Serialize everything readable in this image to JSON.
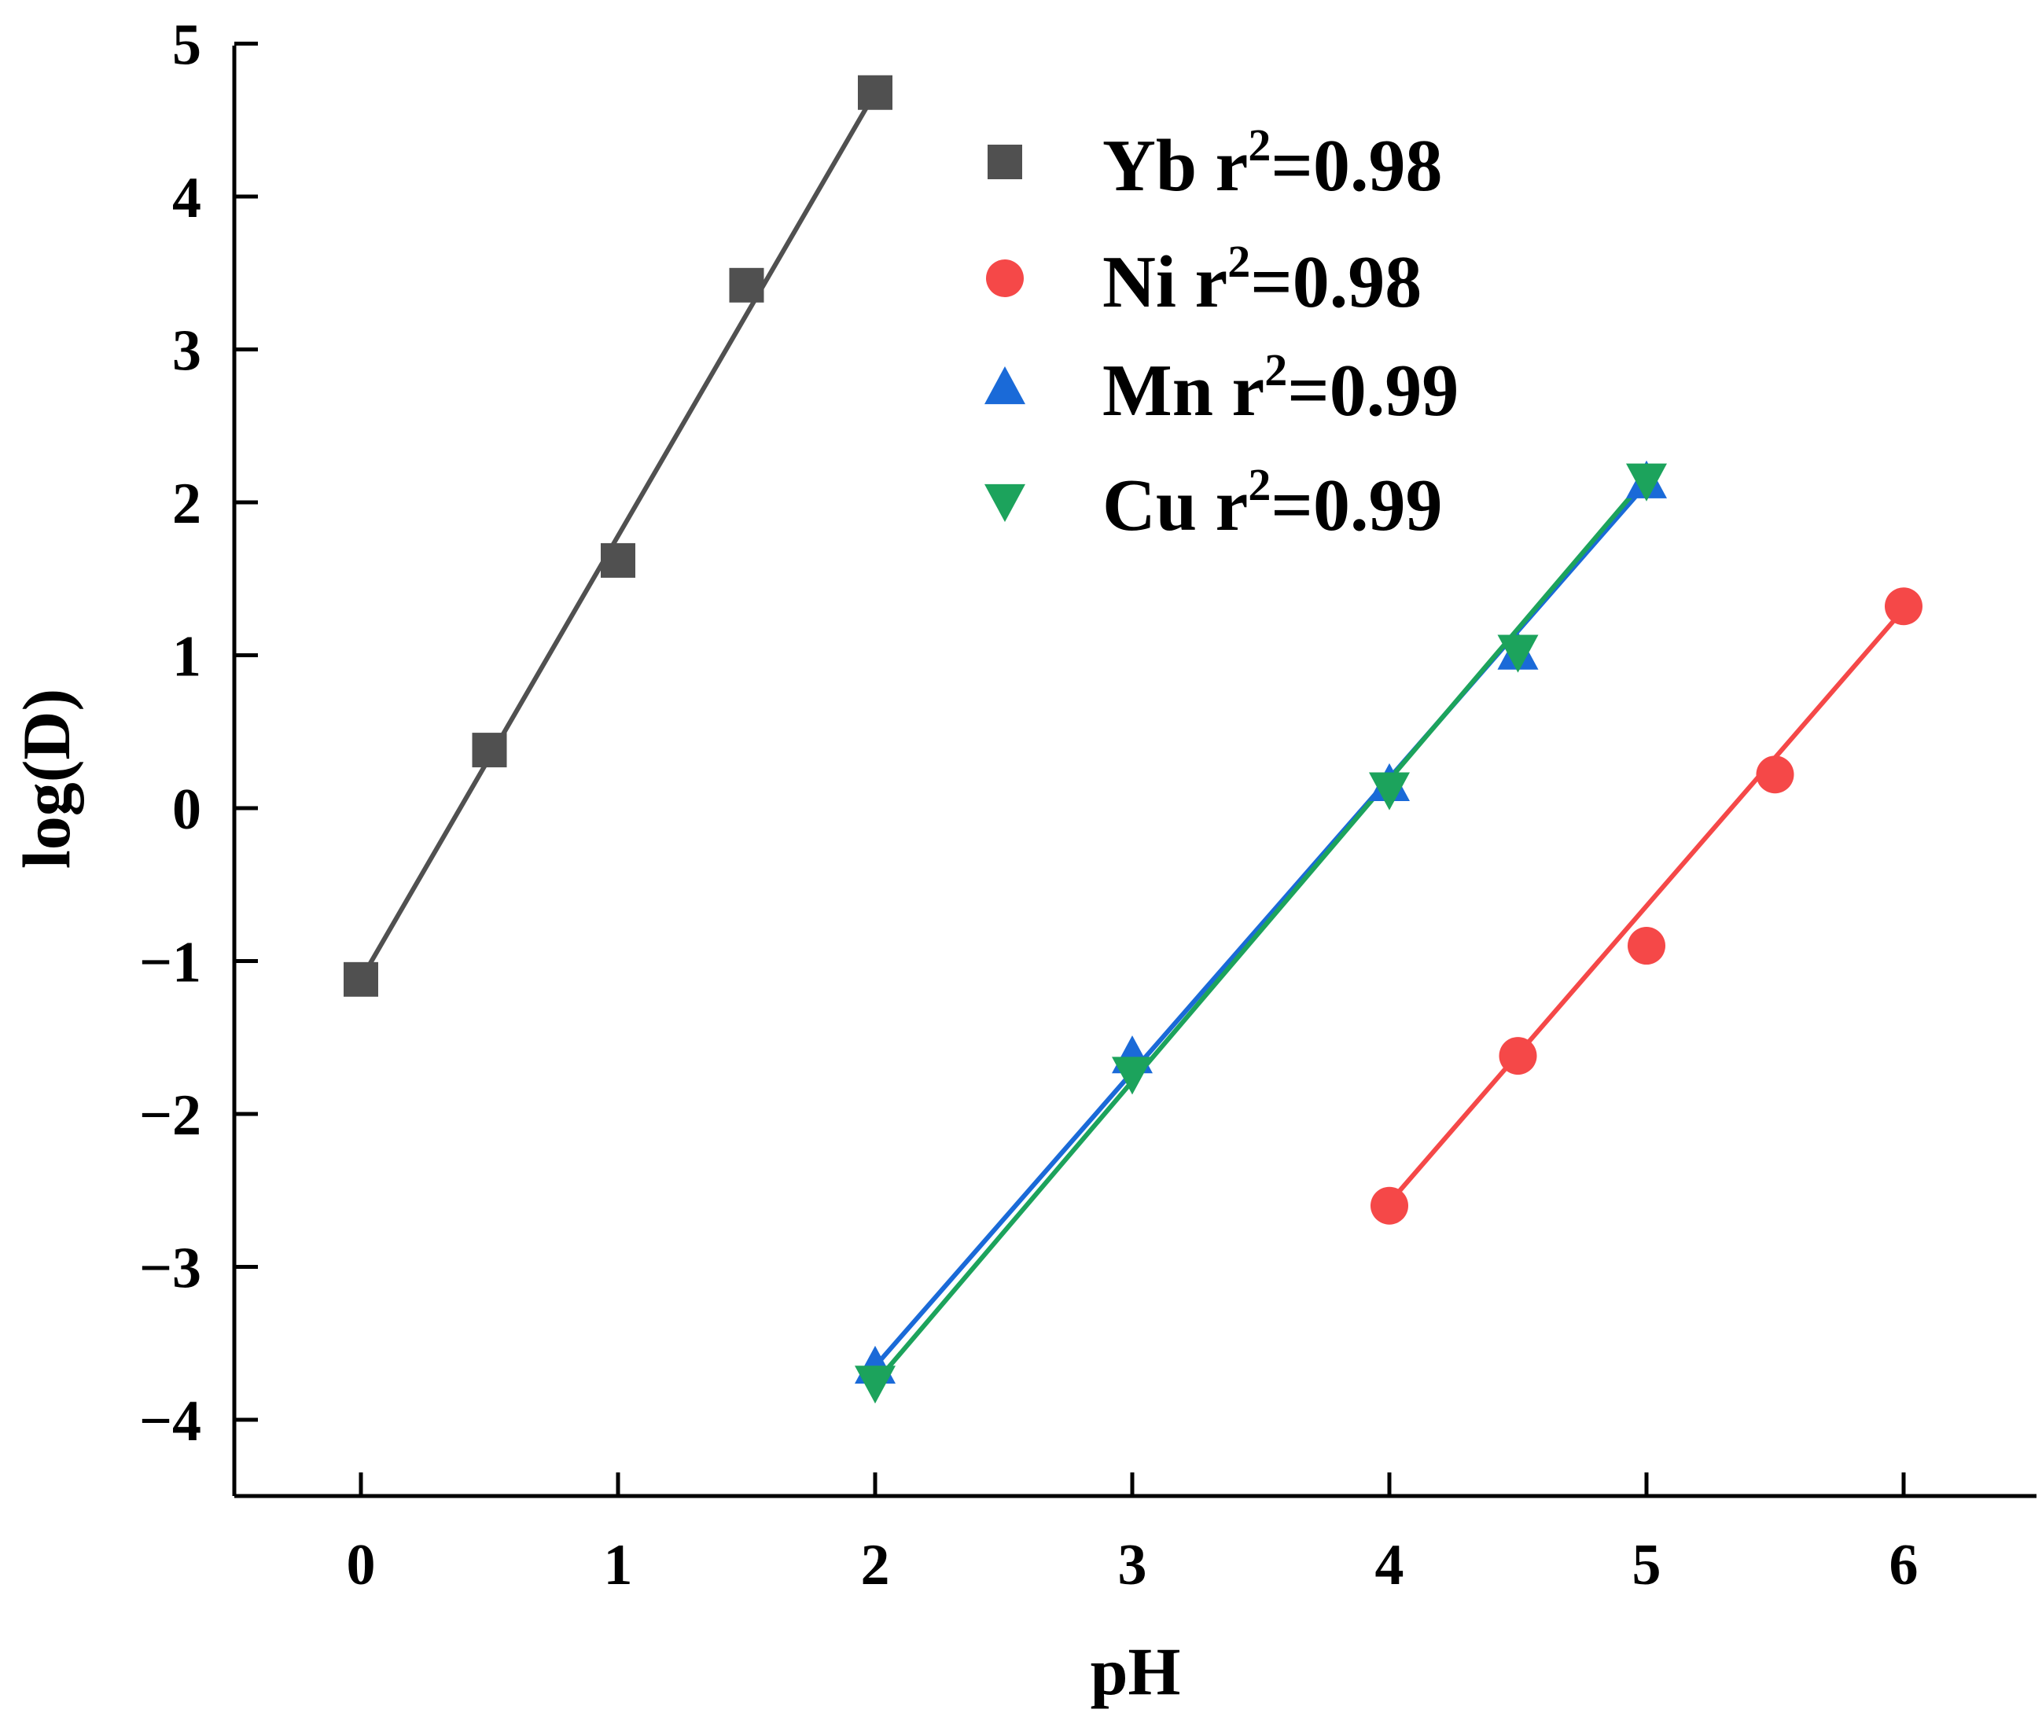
{
  "chart_data": {
    "type": "scatter",
    "title": "",
    "xlabel": "pH",
    "ylabel": "log(D)",
    "xlim": [
      -0.5,
      6.5
    ],
    "ylim": [
      -4.5,
      5
    ],
    "xticks": [
      0,
      1,
      2,
      3,
      4,
      5,
      6
    ],
    "yticks": [
      -4,
      -3,
      -2,
      -1,
      0,
      1,
      2,
      3,
      4,
      5
    ],
    "xtick_labels": [
      "0",
      "1",
      "2",
      "3",
      "4",
      "5",
      "6"
    ],
    "ytick_labels": [
      "−4",
      "−3",
      "−2",
      "−1",
      "0",
      "1",
      "2",
      "3",
      "4",
      "5"
    ],
    "grid": false,
    "legend_position": "top-center",
    "series": [
      {
        "name": "Yb",
        "r2_label": "r",
        "r2_sup": "2",
        "r2_value": "=0.98",
        "marker": "square",
        "color": "#505050",
        "x": [
          0,
          0.5,
          1,
          1.5,
          2
        ],
        "y": [
          -1.12,
          0.38,
          1.62,
          3.42,
          4.68
        ],
        "fit": {
          "x": [
            0,
            2
          ],
          "y": [
            -1.12,
            4.68
          ]
        }
      },
      {
        "name": "Ni",
        "r2_label": "r",
        "r2_sup": "2",
        "r2_value": "=0.98",
        "marker": "circle",
        "color": "#f54848",
        "x": [
          4,
          4.5,
          5,
          5.5,
          6
        ],
        "y": [
          -2.6,
          -1.62,
          -0.9,
          0.22,
          1.32
        ],
        "fit": {
          "x": [
            4,
            6
          ],
          "y": [
            -2.58,
            1.3
          ]
        }
      },
      {
        "name": "Mn",
        "r2_label": "r",
        "r2_sup": "2",
        "r2_value": "=0.99",
        "marker": "triangle-up",
        "color": "#1a6ad8",
        "x": [
          2,
          3,
          4,
          4.5,
          5
        ],
        "y": [
          -3.65,
          -1.62,
          0.16,
          1.02,
          2.14
        ],
        "fit": {
          "x": [
            2,
            5
          ],
          "y": [
            -3.65,
            2.12
          ]
        }
      },
      {
        "name": "Cu",
        "r2_label": "r",
        "r2_sup": "2",
        "r2_value": "=0.99",
        "marker": "triangle-down",
        "color": "#1ca35c",
        "x": [
          2,
          3,
          4,
          4.5,
          5
        ],
        "y": [
          -3.76,
          -1.74,
          0.12,
          1.02,
          2.14
        ],
        "fit": {
          "x": [
            2,
            5
          ],
          "y": [
            -3.76,
            2.16
          ]
        }
      }
    ]
  }
}
